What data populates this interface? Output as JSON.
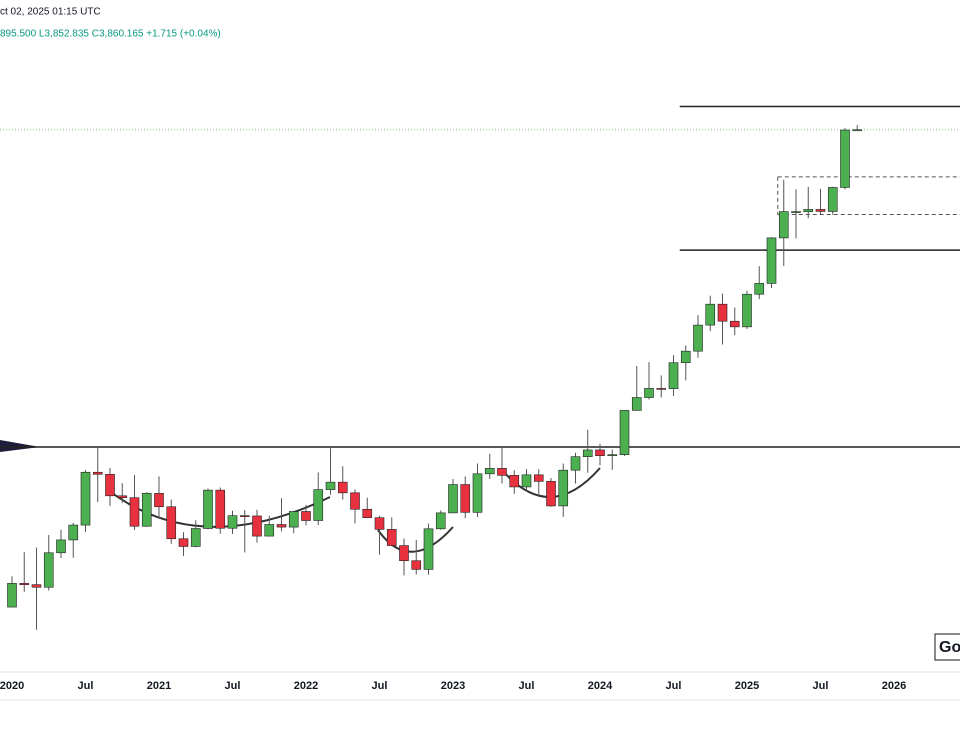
{
  "header": {
    "date": "ct 02, 2025 01:15 UTC",
    "ohlc": "895.500  L3,852.835  C3,860.165  +1.715 (+0.04%)",
    "logo": "Go"
  },
  "chart_data": {
    "type": "candlestick",
    "log_scale": true,
    "x": [
      "2020-01",
      "2020-02",
      "2020-03",
      "2020-04",
      "2020-05",
      "2020-06",
      "2020-07",
      "2020-08",
      "2020-09",
      "2020-10",
      "2020-11",
      "2020-12",
      "2021-01",
      "2021-02",
      "2021-03",
      "2021-04",
      "2021-05",
      "2021-06",
      "2021-07",
      "2021-08",
      "2021-09",
      "2021-10",
      "2021-11",
      "2021-12",
      "2022-01",
      "2022-02",
      "2022-03",
      "2022-04",
      "2022-05",
      "2022-06",
      "2022-07",
      "2022-08",
      "2022-09",
      "2022-10",
      "2022-11",
      "2022-12",
      "2023-01",
      "2023-02",
      "2023-03",
      "2023-04",
      "2023-05",
      "2023-06",
      "2023-07",
      "2023-08",
      "2023-09",
      "2023-10",
      "2023-11",
      "2023-12",
      "2024-01",
      "2024-02",
      "2024-03",
      "2024-04",
      "2024-05",
      "2024-06",
      "2024-07",
      "2024-08",
      "2024-09",
      "2024-10",
      "2024-11",
      "2024-12",
      "2025-01",
      "2025-02",
      "2025-03",
      "2025-04",
      "2025-05",
      "2025-06",
      "2025-07",
      "2025-08",
      "2025-09",
      "2025-10"
    ],
    "open": [
      1517,
      1589,
      1585,
      1577,
      1687,
      1730,
      1781,
      1975,
      1967,
      1886,
      1879,
      1777,
      1895,
      1846,
      1734,
      1708,
      1769,
      1907,
      1770,
      1814,
      1813,
      1743,
      1783,
      1774,
      1829,
      1797,
      1909,
      1937,
      1897,
      1837,
      1807,
      1766,
      1711,
      1661,
      1633,
      1768,
      1824,
      1928,
      1826,
      1969,
      1990,
      1963,
      1919,
      1965,
      1940,
      1849,
      1983,
      2036,
      2063,
      2040,
      2044,
      2229,
      2286,
      2327,
      2326,
      2447,
      2503,
      2634,
      2744,
      2654,
      2625,
      2798,
      2858,
      3124,
      3289,
      3289,
      3303,
      3290,
      3448,
      3858.45
    ],
    "high": [
      1611,
      1689,
      1704,
      1747,
      1765,
      1789,
      1984,
      2075,
      1992,
      1933,
      1965,
      1900,
      1959,
      1872,
      1756,
      1798,
      1913,
      1917,
      1832,
      1834,
      1835,
      1814,
      1877,
      1831,
      1853,
      1974,
      2070,
      1998,
      1910,
      1879,
      1814,
      1808,
      1735,
      1730,
      1786,
      1833,
      1949,
      1959,
      2009,
      2048,
      2079,
      1983,
      1987,
      1987,
      1953,
      2009,
      2052,
      2146,
      2088,
      2065,
      2222,
      2431,
      2450,
      2387,
      2483,
      2531,
      2685,
      2790,
      2801,
      2726,
      2817,
      2956,
      3128,
      3500,
      3435,
      3452,
      3439,
      3453,
      3872,
      3895.5
    ],
    "low": [
      1517,
      1563,
      1451,
      1567,
      1670,
      1671,
      1757,
      1863,
      1849,
      1860,
      1764,
      1775,
      1803,
      1717,
      1677,
      1705,
      1766,
      1751,
      1750,
      1688,
      1721,
      1746,
      1759,
      1753,
      1780,
      1781,
      1890,
      1872,
      1787,
      1805,
      1681,
      1709,
      1614,
      1617,
      1616,
      1765,
      1823,
      1805,
      1810,
      1949,
      1932,
      1893,
      1902,
      1885,
      1846,
      1810,
      1932,
      1973,
      2002,
      1984,
      2039,
      2228,
      2277,
      2286,
      2293,
      2364,
      2471,
      2603,
      2536,
      2583,
      2614,
      2772,
      2832,
      2957,
      3121,
      3247,
      3268,
      3269,
      3435,
      3852.835
    ],
    "close": [
      1589,
      1585,
      1577,
      1687,
      1730,
      1781,
      1975,
      1967,
      1886,
      1879,
      1777,
      1895,
      1846,
      1734,
      1708,
      1769,
      1907,
      1770,
      1814,
      1813,
      1743,
      1783,
      1774,
      1829,
      1797,
      1909,
      1937,
      1897,
      1837,
      1807,
      1766,
      1711,
      1661,
      1633,
      1768,
      1824,
      1928,
      1826,
      1969,
      1990,
      1963,
      1919,
      1965,
      1940,
      1849,
      1983,
      2036,
      2063,
      2040,
      2044,
      2229,
      2286,
      2327,
      2326,
      2447,
      2503,
      2634,
      2744,
      2654,
      2625,
      2798,
      2858,
      3124,
      3289,
      3289,
      3303,
      3290,
      3448,
      3858,
      3860.165
    ],
    "up_color": "#4caf50",
    "down_color": "#e8313f",
    "ylim": [
      1336,
      4976
    ],
    "xtick_labels": [
      "2020",
      "Jul",
      "2021",
      "Jul",
      "2022",
      "Jul",
      "2023",
      "Jul",
      "2024",
      "Jul",
      "2025",
      "Jul",
      "2026"
    ],
    "levels": [
      {
        "value": 4040,
        "style": "solid",
        "from": "2024-08"
      },
      {
        "value": 3050,
        "style": "solid",
        "from": "2024-08"
      },
      {
        "value": 3520,
        "style": "dashed",
        "from": "2025-04"
      },
      {
        "value": 3270,
        "style": "dashed",
        "from": "2025-04"
      },
      {
        "value": 2075,
        "style": "solid"
      }
    ]
  }
}
